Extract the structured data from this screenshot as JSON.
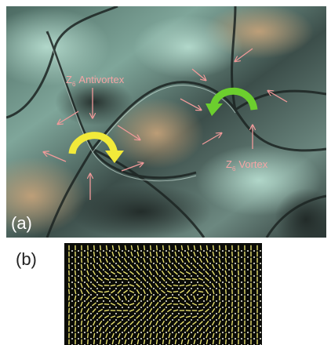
{
  "panels": [
    {
      "label": "(a)",
      "annotations": [
        {
          "symbol": "Z",
          "subscript": "6",
          "text": "Antivortex"
        },
        {
          "symbol": "Z",
          "subscript": "6",
          "text": "Vortex"
        }
      ]
    },
    {
      "label": "(b)"
    }
  ]
}
